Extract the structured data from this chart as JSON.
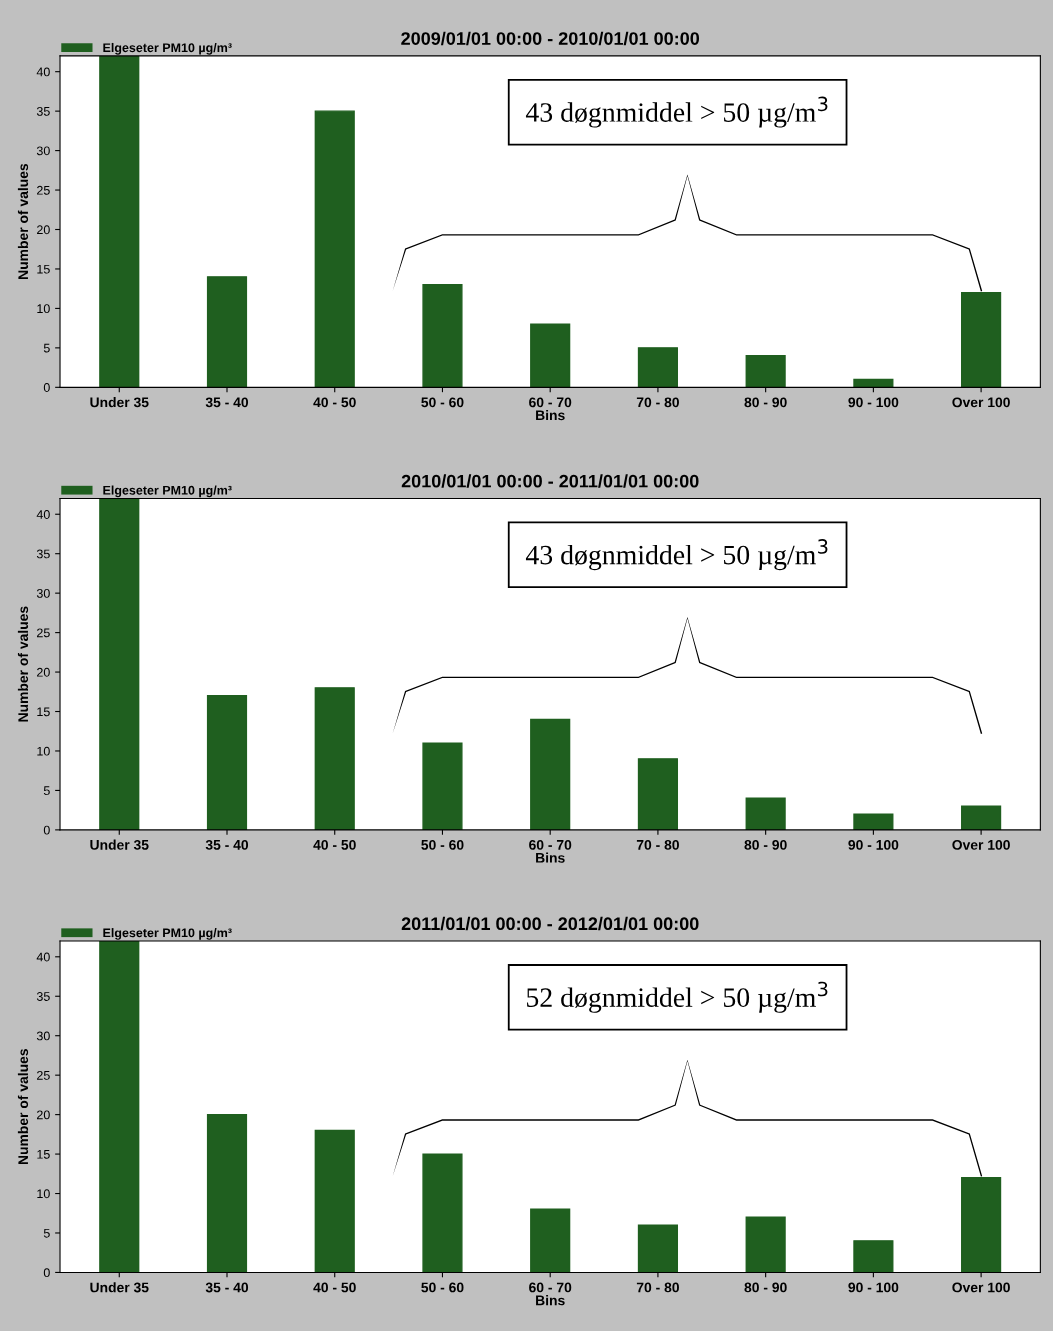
{
  "chart_data": [
    {
      "type": "bar",
      "title": "2009/01/01 00:00 - 2010/01/01 00:00",
      "xlabel": "Bins",
      "ylabel": "Number of values",
      "categories": [
        "Under 35",
        "35 - 40",
        "40 - 50",
        "50 - 60",
        "60 - 70",
        "70 - 80",
        "80 - 90",
        "90 - 100",
        "Over 100"
      ],
      "series": [
        {
          "name": "Elgeseter PM10 µg/m³",
          "color": "#1f5f1f",
          "values": [
            42,
            14,
            35,
            13,
            8,
            5,
            4,
            1,
            12
          ]
        }
      ],
      "ylim": [
        0,
        42
      ],
      "yticks": [
        0,
        5,
        10,
        15,
        20,
        25,
        30,
        35,
        40
      ],
      "grid": false,
      "legend": "top left",
      "annotations": [
        "43 døgnmiddel > 50 µg/m$^{3}$"
      ]
    },
    {
      "type": "bar",
      "title": "2010/01/01 00:00 - 2011/01/01 00:00",
      "xlabel": "Bins",
      "ylabel": "Number of values",
      "categories": [
        "Under 35",
        "35 - 40",
        "40 - 50",
        "50 - 60",
        "60 - 70",
        "70 - 80",
        "80 - 90",
        "90 - 100",
        "Over 100"
      ],
      "series": [
        {
          "name": "Elgeseter PM10 µg/m³",
          "color": "#1f5f1f",
          "values": [
            42,
            17,
            18,
            11,
            14,
            9,
            4,
            2,
            3
          ]
        }
      ],
      "ylim": [
        0,
        42
      ],
      "yticks": [
        0,
        5,
        10,
        15,
        20,
        25,
        30,
        35,
        40
      ],
      "grid": false,
      "legend": "top left",
      "annotations": [
        "43 døgnmiddel > 50 µg/m$^{3}$"
      ]
    },
    {
      "type": "bar",
      "title": "2011/01/01 00:00 - 2012/01/01 00:00",
      "xlabel": "Bins",
      "ylabel": "Number of values",
      "categories": [
        "Under 35",
        "35 - 40",
        "40 - 50",
        "50 - 60",
        "60 - 70",
        "70 - 80",
        "80 - 90",
        "90 - 100",
        "Over 100"
      ],
      "series": [
        {
          "name": "Elgeseter PM10 µg/m³",
          "color": "#1f5f1f",
          "values": [
            42,
            20,
            18,
            15,
            8,
            6,
            7,
            4,
            12
          ]
        }
      ],
      "ylim": [
        0,
        42
      ],
      "yticks": [
        0,
        5,
        10,
        15,
        20,
        25,
        30,
        35,
        40
      ],
      "grid": false,
      "legend": "top left",
      "annotations": [
        "52 døgnmiddel > 50 µg/m$^{3}$"
      ]
    }
  ]
}
